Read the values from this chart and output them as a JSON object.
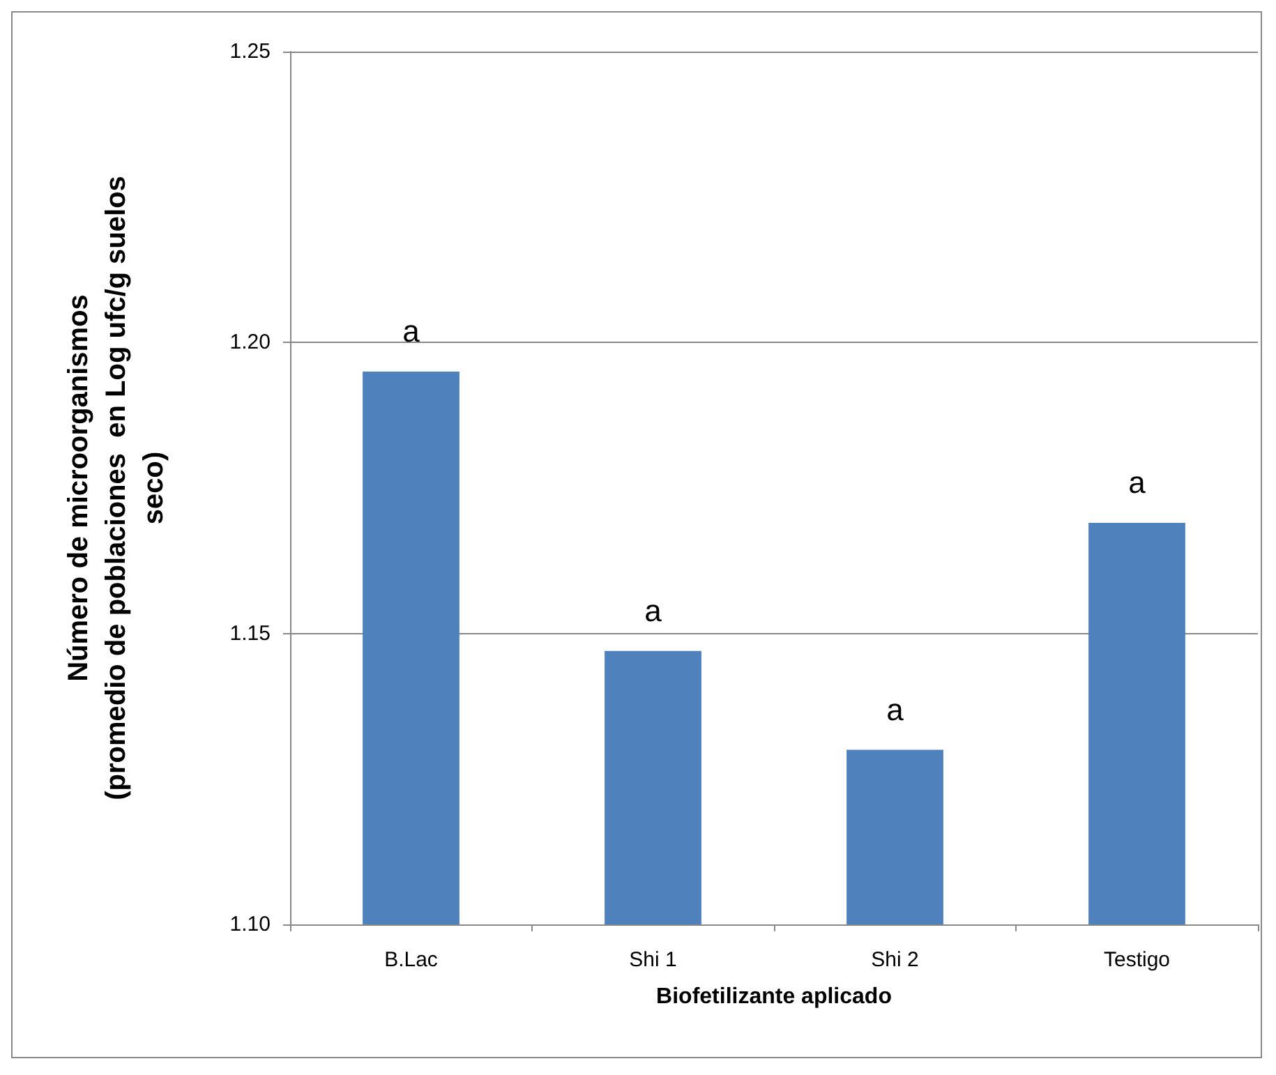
{
  "chart_data": {
    "type": "bar",
    "xlabel": "Biofetilizante aplicado",
    "ylabel": "Número de microorganismos\n(promedio de poblaciones  en Log ufc/g suelos\nseco)",
    "categories": [
      "B.Lac",
      "Shi 1",
      "Shi 2",
      "Testigo"
    ],
    "values": [
      1.195,
      1.147,
      1.13,
      1.169
    ],
    "color": "#4f81bd",
    "ylim": [
      1.1,
      1.25
    ],
    "yticks": [
      {
        "value": 1.1,
        "label": "1.10"
      },
      {
        "value": 1.15,
        "label": "1.15"
      },
      {
        "value": 1.2,
        "label": "1.20"
      },
      {
        "value": 1.25,
        "label": "1.25"
      }
    ],
    "grid": "y",
    "annotations": [
      "a",
      "a",
      "a",
      "a"
    ]
  }
}
